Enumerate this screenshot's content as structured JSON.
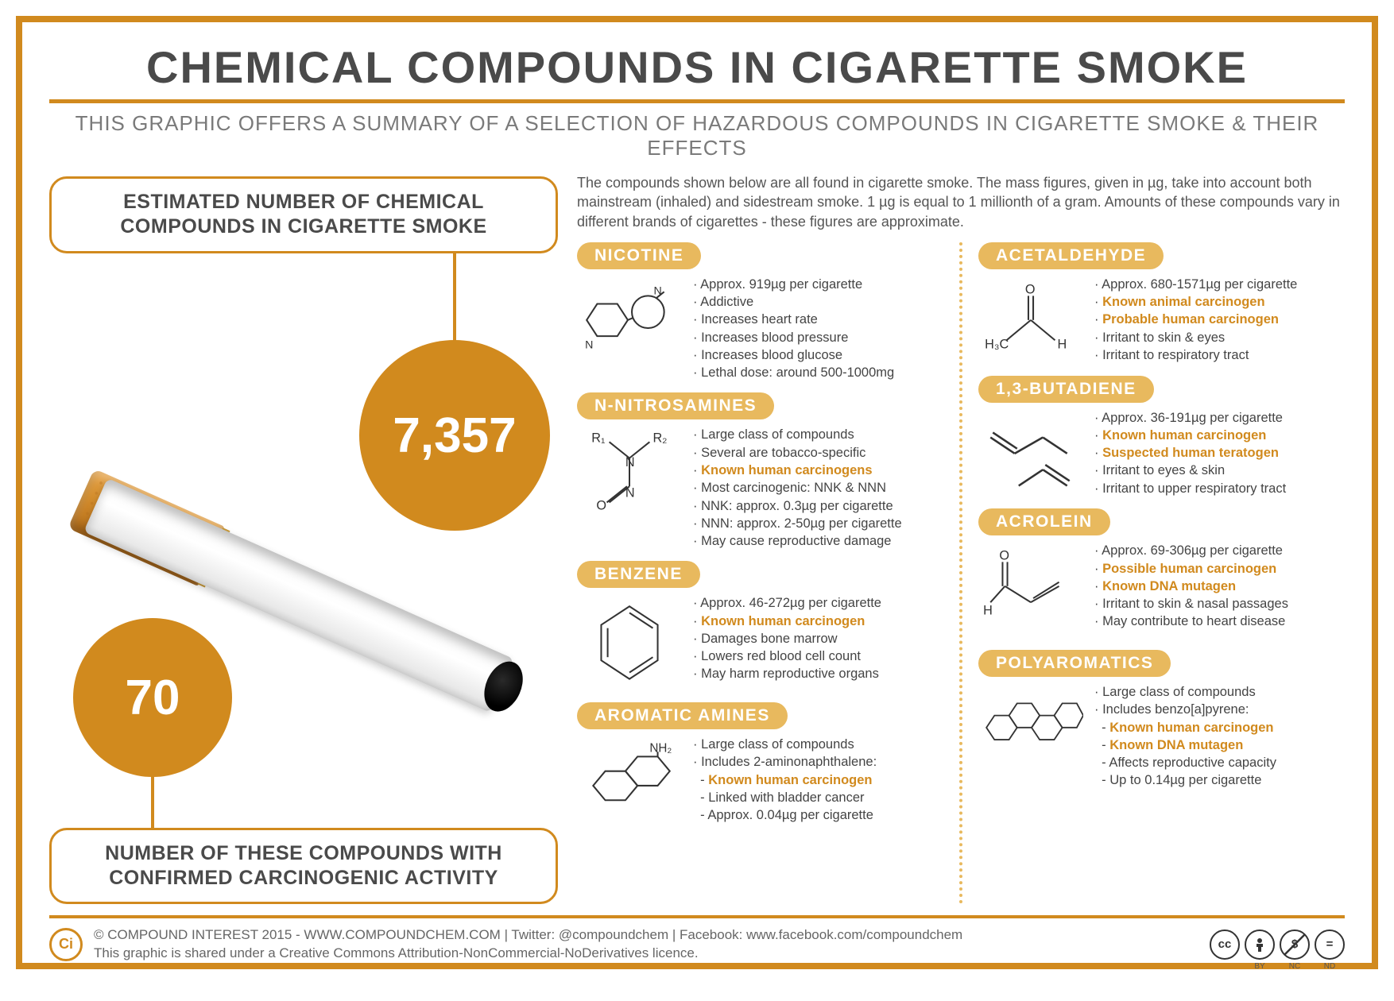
{
  "colors": {
    "accent": "#d18a1e",
    "chip": "#e8b95e",
    "text": "#4a4a4a",
    "muted": "#7a7a7a",
    "highlight": "#d18a1e",
    "background": "#ffffff"
  },
  "title": "CHEMICAL COMPOUNDS IN CIGARETTE SMOKE",
  "subtitle": "THIS GRAPHIC OFFERS A SUMMARY OF A SELECTION OF HAZARDOUS COMPOUNDS IN CIGARETTE SMOKE & THEIR EFFECTS",
  "stats": {
    "top_label": "ESTIMATED NUMBER OF CHEMICAL COMPOUNDS IN CIGARETTE SMOKE",
    "top_value": "7,357",
    "bottom_value": "70",
    "bottom_label": "NUMBER OF THESE COMPOUNDS WITH CONFIRMED CARCINOGENIC ACTIVITY"
  },
  "intro": "The compounds shown below are all found in cigarette smoke. The mass figures, given in µg, take into account both mainstream (inhaled) and sidestream smoke. 1 µg is equal to 1 millionth of a gram. Amounts of these compounds vary in different brands of cigarettes - these figures are approximate.",
  "left_column": [
    {
      "name": "NICOTINE",
      "bullets": [
        {
          "t": "Approx. 919µg per cigarette"
        },
        {
          "t": "Addictive"
        },
        {
          "t": "Increases heart rate"
        },
        {
          "t": "Increases blood pressure"
        },
        {
          "t": "Increases blood glucose"
        },
        {
          "t": "Lethal dose: around 500-1000mg"
        }
      ]
    },
    {
      "name": "N-NITROSAMINES",
      "bullets": [
        {
          "t": "Large class of compounds"
        },
        {
          "t": "Several are tobacco-specific"
        },
        {
          "t": "Known human carcinogens",
          "hl": true
        },
        {
          "t": "Most carcinogenic: NNK & NNN"
        },
        {
          "t": "NNK: approx. 0.3µg per cigarette"
        },
        {
          "t": "NNN: approx. 2-50µg per cigarette"
        },
        {
          "t": "May cause reproductive damage"
        }
      ]
    },
    {
      "name": "BENZENE",
      "bullets": [
        {
          "t": "Approx. 46-272µg per cigarette"
        },
        {
          "t": "Known human carcinogen",
          "hl": true
        },
        {
          "t": "Damages bone marrow"
        },
        {
          "t": "Lowers red blood cell count"
        },
        {
          "t": "May harm reproductive organs"
        }
      ]
    },
    {
      "name": "AROMATIC AMINES",
      "bullets": [
        {
          "t": "Large class of compounds"
        },
        {
          "t": "Includes 2-aminonaphthalene:"
        },
        {
          "t": "Known human carcinogen",
          "hl": true,
          "sub": true
        },
        {
          "t": "Linked with bladder cancer",
          "sub": true
        },
        {
          "t": "Approx. 0.04µg per cigarette",
          "sub": true
        }
      ]
    }
  ],
  "right_column": [
    {
      "name": "ACETALDEHYDE",
      "bullets": [
        {
          "t": "Approx. 680-1571µg per cigarette"
        },
        {
          "t": "Known animal carcinogen",
          "hl": true
        },
        {
          "t": "Probable human carcinogen",
          "hl": true
        },
        {
          "t": "Irritant to skin & eyes"
        },
        {
          "t": "Irritant to respiratory tract"
        }
      ]
    },
    {
      "name": "1,3-BUTADIENE",
      "bullets": [
        {
          "t": "Approx. 36-191µg per cigarette"
        },
        {
          "t": "Known human carcinogen",
          "hl": true
        },
        {
          "t": "Suspected human teratogen",
          "hl": true
        },
        {
          "t": "Irritant to eyes & skin"
        },
        {
          "t": "Irritant to upper respiratory tract"
        }
      ]
    },
    {
      "name": "ACROLEIN",
      "bullets": [
        {
          "t": "Approx. 69-306µg per cigarette"
        },
        {
          "t": "Possible human carcinogen",
          "hl": true
        },
        {
          "t": "Known DNA mutagen",
          "hl": true
        },
        {
          "t": "Irritant to skin & nasal passages"
        },
        {
          "t": "May contribute to heart disease"
        }
      ]
    },
    {
      "name": "POLYAROMATICS",
      "bullets": [
        {
          "t": "Large class of compounds"
        },
        {
          "t": "Includes benzo[a]pyrene:"
        },
        {
          "t": "Known human carcinogen",
          "hl": true,
          "sub": true
        },
        {
          "t": "Known DNA mutagen",
          "hl": true,
          "sub": true
        },
        {
          "t": "Affects reproductive capacity",
          "sub": true
        },
        {
          "t": "Up to 0.14µg per cigarette",
          "sub": true
        }
      ]
    }
  ],
  "footer": {
    "line1": "© COMPOUND INTEREST 2015 - WWW.COMPOUNDCHEM.COM | Twitter: @compoundchem | Facebook: www.facebook.com/compoundchem",
    "line2": "This graphic is shared under a Creative Commons Attribution-NonCommercial-NoDerivatives licence.",
    "ci_label": "Ci",
    "cc": [
      "cc",
      "BY",
      "NC",
      "ND"
    ],
    "cc_glyphs": [
      "cc",
      "①",
      "$",
      "="
    ]
  }
}
